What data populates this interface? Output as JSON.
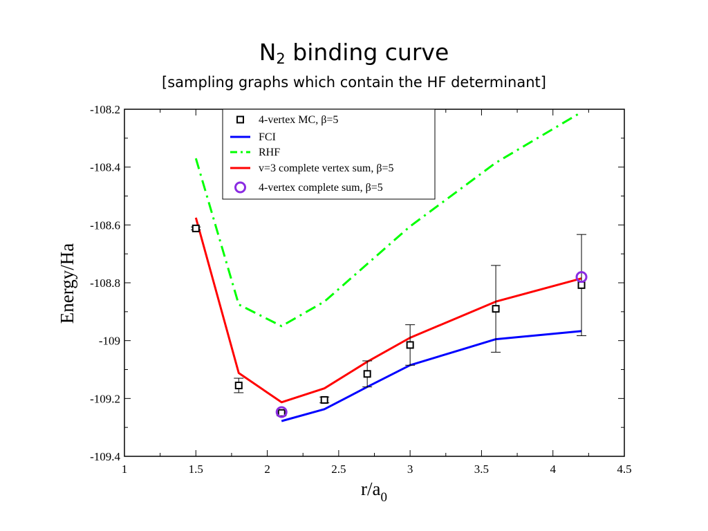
{
  "title": {
    "main": "N",
    "main_sub": "2",
    "main_rest": " binding curve",
    "subtitle": "[sampling graphs which contain the HF determinant]"
  },
  "chart_data": {
    "type": "line",
    "title": "N2 binding curve",
    "subtitle": "[sampling graphs which contain the HF determinant]",
    "xlabel": "r/a",
    "xlabel_sub": "0",
    "ylabel": "Energy/Ha",
    "xlim": [
      1,
      4.5
    ],
    "ylim": [
      -109.4,
      -108.2
    ],
    "xticks": [
      1,
      1.5,
      2,
      2.5,
      3,
      3.5,
      4,
      4.5
    ],
    "xtick_labels": [
      "1",
      "1.5",
      "2",
      "2.5",
      "3",
      "3.5",
      "4",
      "4.5"
    ],
    "yticks": [
      -108.2,
      -108.4,
      -108.6,
      -108.8,
      -109,
      -109.2,
      -109.4
    ],
    "ytick_labels": [
      "-108.2",
      "-108.4",
      "-108.6",
      "-108.8",
      "-109",
      "-109.2",
      "-109.4"
    ],
    "grid": false,
    "legend_position": "top-center",
    "series": [
      {
        "name": "4-vertex MC, β=5",
        "kind": "marker-square",
        "color": "#000000",
        "x": [
          1.5,
          1.8,
          2.1,
          2.4,
          2.7,
          3.0,
          3.6,
          4.2
        ],
        "y": [
          -108.612,
          -109.155,
          -109.25,
          -109.205,
          -109.115,
          -109.015,
          -108.89,
          -108.808
        ],
        "err": [
          0.005,
          0.025,
          0.01,
          0.01,
          0.045,
          0.07,
          0.15,
          0.175
        ]
      },
      {
        "name": "FCI",
        "kind": "line",
        "color": "#0000ff",
        "x": [
          2.1,
          2.4,
          2.7,
          3.0,
          3.6,
          4.2
        ],
        "y": [
          -109.278,
          -109.237,
          -109.16,
          -109.085,
          -108.995,
          -108.967
        ]
      },
      {
        "name": "RHF",
        "kind": "dashdot",
        "color": "#00ff00",
        "x": [
          1.5,
          1.8,
          2.1,
          2.4,
          3.0,
          3.6,
          4.2
        ],
        "y": [
          -108.37,
          -108.875,
          -108.95,
          -108.865,
          -108.605,
          -108.385,
          -108.21
        ]
      },
      {
        "name": "v=3 complete vertex sum, β=5",
        "kind": "line",
        "color": "#ff0000",
        "x": [
          1.5,
          1.8,
          2.1,
          2.4,
          2.7,
          3.0,
          3.6,
          4.2
        ],
        "y": [
          -108.575,
          -109.112,
          -109.213,
          -109.165,
          -109.073,
          -108.99,
          -108.865,
          -108.785
        ]
      },
      {
        "name": "4-vertex complete sum, β=5",
        "kind": "marker-circle",
        "color": "#8a2be2",
        "x": [
          2.1,
          4.2
        ],
        "y": [
          -109.247,
          -108.78
        ]
      }
    ]
  }
}
